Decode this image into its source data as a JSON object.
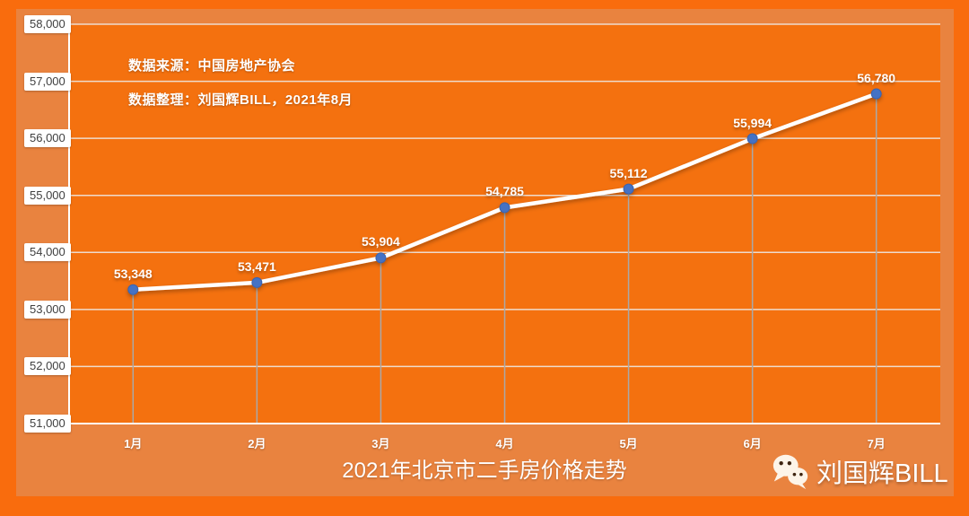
{
  "chart_data": {
    "type": "line",
    "title": "2021年北京市二手房价格走势",
    "categories": [
      "1月",
      "2月",
      "3月",
      "4月",
      "5月",
      "6月",
      "7月"
    ],
    "values": [
      53348,
      53471,
      53904,
      54785,
      55112,
      55994,
      56780
    ],
    "value_labels": [
      "53,348",
      "53,471",
      "53,904",
      "54,785",
      "55,112",
      "55,994",
      "56,780"
    ],
    "xlabel": "",
    "ylabel": "",
    "ylim": [
      51000,
      58000
    ],
    "y_tick_step": 1000,
    "y_tick_labels": [
      "51,000",
      "52,000",
      "53,000",
      "54,000",
      "55,000",
      "56,000",
      "57,000",
      "58,000"
    ],
    "grid": {
      "horizontal": true,
      "vertical_droplines": true
    },
    "legend": "none"
  },
  "notes": {
    "source": "数据来源：中国房地产协会",
    "curator": "数据整理：刘国辉BILL，2021年8月"
  },
  "watermark": {
    "icon": "wechat-icon",
    "name": "刘国辉BILL"
  },
  "colors": {
    "outer_background": "#F96C0D",
    "panel_background": "#E9833F",
    "plot_background": "#F4710F",
    "line": "#FFFFFF",
    "marker": "#4472C4",
    "marker_edge": "#3A63AE",
    "gridline": "#EDE7E1",
    "dropline": "#A9A9A9",
    "axis": "#FFFFFF",
    "tick_label_bg": "#FFFFFF",
    "tick_label_text": "#3F3F3F",
    "text": "#FFFFFF"
  }
}
